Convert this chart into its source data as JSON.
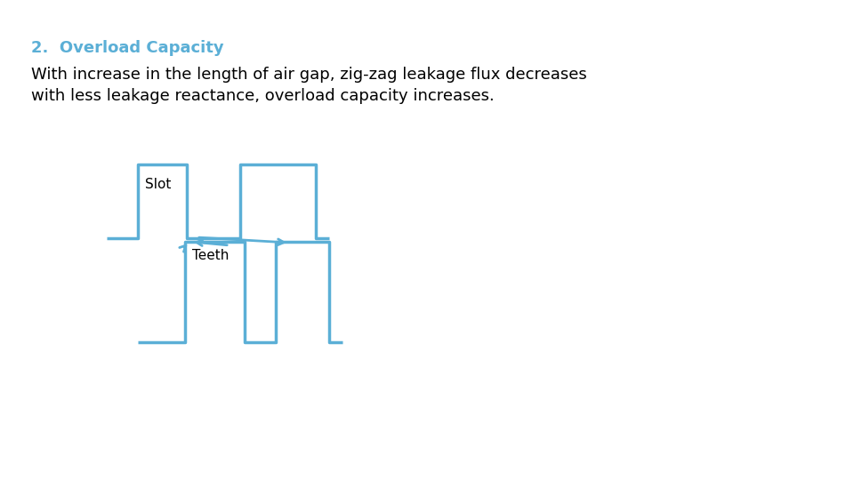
{
  "title_text": "2.  Overload Capacity",
  "title_color": "#5BAFD6",
  "body_text": "With increase in the length of air gap, zig-zag leakage flux decreases\nwith less leakage reactance, overload capacity increases.",
  "body_color": "#000000",
  "slot_label": "Slot",
  "teeth_label": "Teeth",
  "line_color": "#5BAFD6",
  "line_width": 2.5,
  "bg_color": "#ffffff",
  "title_fontsize": 13,
  "body_fontsize": 13,
  "label_fontsize": 11
}
